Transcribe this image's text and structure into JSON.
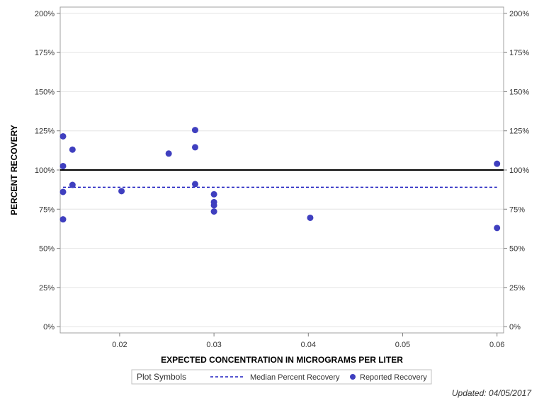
{
  "chart_data": {
    "type": "scatter",
    "xlabel": "EXPECTED CONCENTRATION IN MICROGRAMS PER LITER",
    "ylabel": "PERCENT RECOVERY",
    "xlim": [
      0.0137,
      0.0607
    ],
    "ylim": [
      -0.04,
      2.04
    ],
    "x_ticks": [
      0.02,
      0.03,
      0.04,
      0.05,
      0.06
    ],
    "x_tick_labels": [
      "0.02",
      "0.03",
      "0.04",
      "0.05",
      "0.06"
    ],
    "y_ticks": [
      0,
      0.25,
      0.5,
      0.75,
      1.0,
      1.25,
      1.5,
      1.75,
      2.0
    ],
    "y_tick_labels": [
      "0%",
      "25%",
      "50%",
      "75%",
      "100%",
      "125%",
      "150%",
      "175%",
      "200%"
    ],
    "grid": true,
    "reference_line": {
      "y": 1.0,
      "color": "#000000"
    },
    "median_line": {
      "name": "Median Percent Recovery",
      "y": 0.89,
      "x_range": [
        0.014,
        0.06
      ],
      "color": "#2020c0",
      "style": "dashed"
    },
    "series": [
      {
        "name": "Reported Recovery",
        "color": "#3f3fbf",
        "points": [
          {
            "x": 0.014,
            "y": 1.215
          },
          {
            "x": 0.014,
            "y": 1.025
          },
          {
            "x": 0.014,
            "y": 0.86
          },
          {
            "x": 0.014,
            "y": 0.685
          },
          {
            "x": 0.015,
            "y": 1.13
          },
          {
            "x": 0.015,
            "y": 0.905
          },
          {
            "x": 0.0202,
            "y": 0.865
          },
          {
            "x": 0.0252,
            "y": 1.105
          },
          {
            "x": 0.028,
            "y": 1.255
          },
          {
            "x": 0.028,
            "y": 1.145
          },
          {
            "x": 0.028,
            "y": 0.91
          },
          {
            "x": 0.03,
            "y": 0.845
          },
          {
            "x": 0.03,
            "y": 0.795
          },
          {
            "x": 0.03,
            "y": 0.775
          },
          {
            "x": 0.03,
            "y": 0.735
          },
          {
            "x": 0.0402,
            "y": 0.695
          },
          {
            "x": 0.06,
            "y": 1.04
          },
          {
            "x": 0.06,
            "y": 0.63
          }
        ]
      }
    ],
    "legend": {
      "title": "Plot Symbols",
      "placement": "bottom",
      "entries": [
        "Median Percent Recovery",
        "Reported Recovery"
      ]
    }
  },
  "footnote": "Updated: 04/05/2017"
}
